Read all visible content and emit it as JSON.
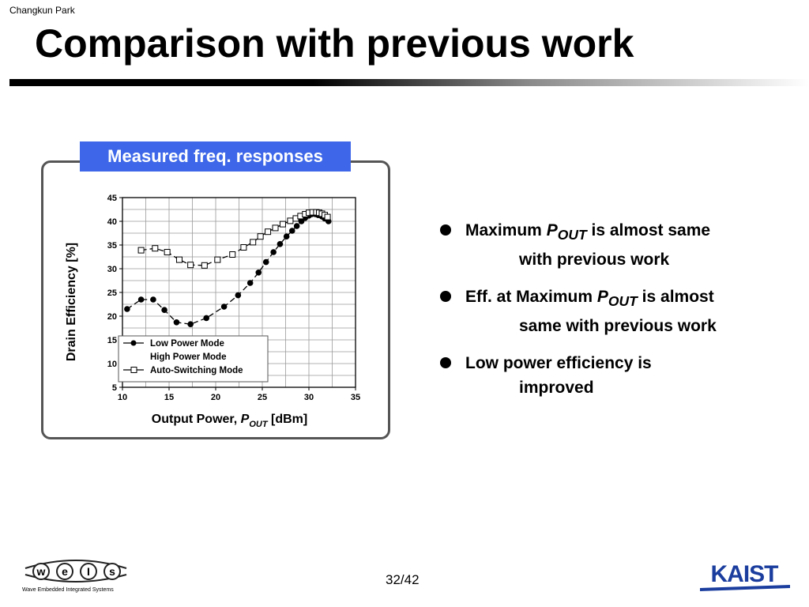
{
  "slide": {
    "author": "Changkun Park",
    "title": "Comparison with previous work",
    "page": "32/42"
  },
  "panel": {
    "header": "Measured freq. responses"
  },
  "bullets": [
    {
      "pre": "Maximum ",
      "var": "P",
      "sub": "OUT",
      "post": " is almost same",
      "line2": "with previous work"
    },
    {
      "pre": "Eff. at Maximum ",
      "var": "P",
      "sub": "OUT",
      "post": " is almost",
      "line2": "same with previous work"
    },
    {
      "pre": "Low power efficiency is",
      "var": "",
      "sub": "",
      "post": "",
      "line2": "improved"
    }
  ],
  "logos": {
    "weis_letters": [
      "w",
      "e",
      "I",
      "s"
    ],
    "weis_tagline": "Wave  Embedded  Integrated  Systems",
    "kaist": "KAIST"
  },
  "chart_data": {
    "type": "line",
    "xlabel_pre": "Output Power, ",
    "xlabel_var": "P",
    "xlabel_sub": "OUT",
    "xlabel_post": " [dBm]",
    "ylabel": "Drain Efficiency [%]",
    "xlim": [
      10,
      35
    ],
    "ylim": [
      5,
      45
    ],
    "xticks": [
      10,
      15,
      20,
      25,
      30,
      35
    ],
    "yticks": [
      5,
      10,
      15,
      20,
      25,
      30,
      35,
      40,
      45
    ],
    "grid": true,
    "legend_position": "bottom-left",
    "series": [
      {
        "name": "Low Power Mode",
        "marker": "filled-circle",
        "x": [
          10.5,
          12.0,
          13.3,
          14.5,
          15.8,
          17.3,
          19.0,
          20.9,
          22.4,
          23.7,
          24.6,
          25.4,
          26.2,
          26.9,
          27.6,
          28.2,
          28.7,
          29.2,
          29.6,
          30.0,
          30.3,
          30.7,
          31.0,
          31.4,
          31.7,
          32.1
        ],
        "y": [
          21.5,
          23.5,
          23.5,
          21.3,
          18.7,
          18.3,
          19.6,
          22.0,
          24.4,
          27.0,
          29.2,
          31.4,
          33.5,
          35.2,
          36.8,
          38.0,
          39.0,
          40.0,
          40.7,
          41.2,
          41.5,
          41.5,
          41.3,
          41.0,
          40.6,
          40.0
        ]
      },
      {
        "name": "High Power Mode",
        "marker": "none",
        "x": [],
        "y": []
      },
      {
        "name": "Auto-Switching Mode",
        "marker": "open-square",
        "x": [
          12.0,
          13.5,
          14.8,
          16.1,
          17.3,
          18.8,
          20.2,
          21.8,
          23.0,
          24.0,
          24.8,
          25.6,
          26.4,
          27.2,
          28.0,
          28.6,
          29.1,
          29.6,
          30.0,
          30.4,
          30.8,
          31.1,
          31.4,
          31.7,
          32.0
        ],
        "y": [
          33.9,
          34.3,
          33.5,
          31.9,
          30.8,
          30.7,
          31.9,
          33.0,
          34.5,
          35.6,
          36.8,
          37.8,
          38.6,
          39.4,
          40.1,
          40.6,
          41.1,
          41.5,
          41.8,
          41.9,
          41.9,
          41.8,
          41.6,
          41.3,
          40.9
        ]
      }
    ]
  }
}
